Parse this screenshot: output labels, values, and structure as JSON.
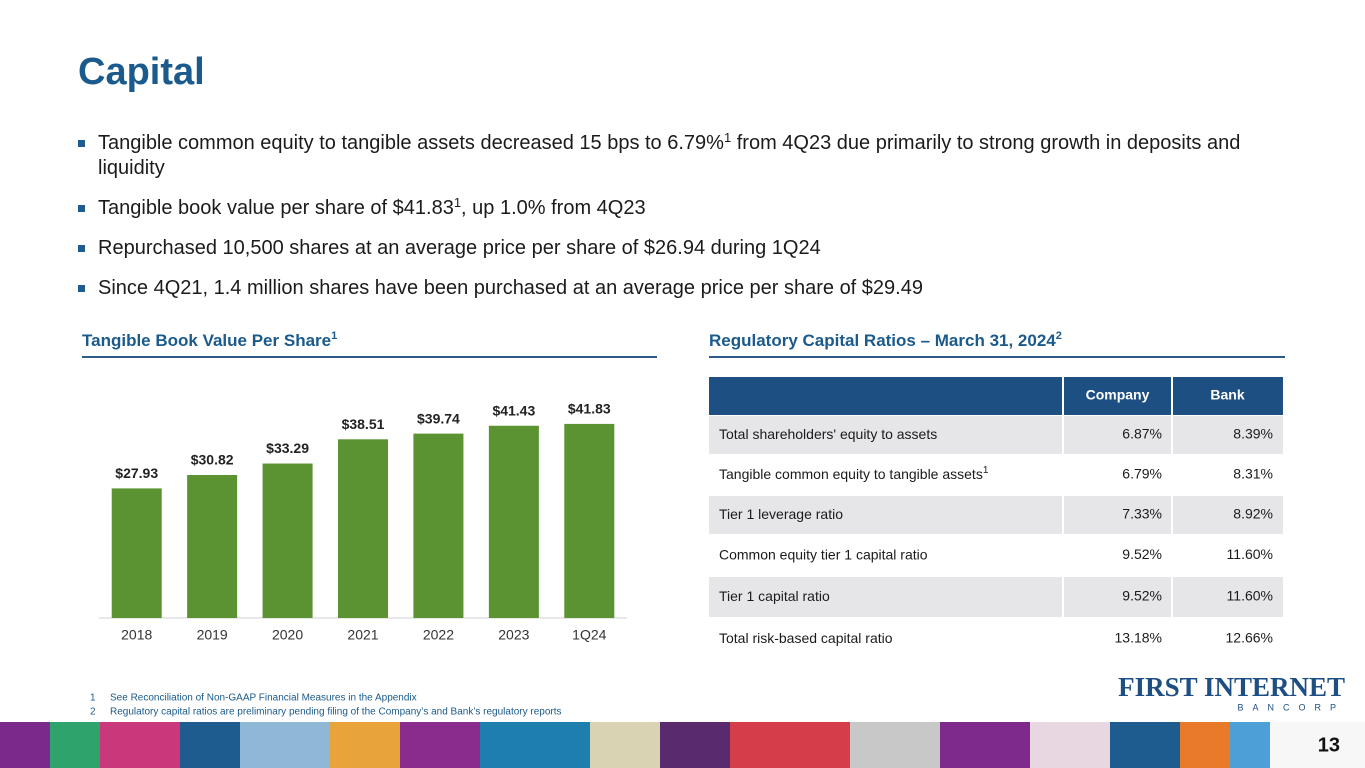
{
  "title": "Capital",
  "bullets": [
    {
      "before": "Tangible common equity to tangible assets decreased 15 bps to 6.79%",
      "note": "1",
      "after": " from 4Q23 due primarily to strong growth in deposits and liquidity"
    },
    {
      "before": "Tangible book value per share of $41.83",
      "note": "1",
      "after": ", up 1.0% from 4Q23"
    },
    {
      "before": "Repurchased 10,500 shares at an average price per share of $26.94 during 1Q24"
    },
    {
      "before": "Since 4Q21, 1.4 million shares have been purchased at an average price per share of $29.49"
    }
  ],
  "chart_data": {
    "type": "bar",
    "title": "Tangible Book Value Per Share",
    "title_note": "1",
    "categories": [
      "2018",
      "2019",
      "2020",
      "2021",
      "2022",
      "2023",
      "1Q24"
    ],
    "values": [
      27.93,
      30.82,
      33.29,
      38.51,
      39.74,
      41.43,
      41.83
    ],
    "value_labels": [
      "$27.93",
      "$30.82",
      "$33.29",
      "$38.51",
      "$39.74",
      "$41.43",
      "$41.83"
    ],
    "color": "#5b9232",
    "ylim": [
      0,
      50
    ]
  },
  "table": {
    "title": "Regulatory Capital Ratios – March 31, 2024",
    "title_note": "2",
    "columns": [
      "Company",
      "Bank"
    ],
    "rows": [
      {
        "label": "Total shareholders' equity to assets",
        "cells": [
          "6.87%",
          "8.39%"
        ]
      },
      {
        "label": "Tangible common equity to tangible assets",
        "note": "1",
        "cells": [
          "6.79%",
          "8.31%"
        ]
      },
      {
        "label": "Tier 1 leverage ratio",
        "cells": [
          "7.33%",
          "8.92%"
        ]
      },
      {
        "label": "Common equity tier 1 capital ratio",
        "cells": [
          "9.52%",
          "11.60%"
        ]
      },
      {
        "label": "Tier 1 capital ratio",
        "cells": [
          "9.52%",
          "11.60%"
        ]
      },
      {
        "label": "Total risk-based capital ratio",
        "cells": [
          "13.18%",
          "12.66%"
        ]
      }
    ]
  },
  "footnotes": [
    {
      "number": "1",
      "text": "See Reconciliation of Non-GAAP Financial Measures in the Appendix"
    },
    {
      "number": "2",
      "text": "Regulatory capital ratios are preliminary pending filing of the Company’s and Bank’s regulatory reports"
    }
  ],
  "logo": {
    "name": "FIRST INTERNET",
    "sub": "BANCORP"
  },
  "page_number": "13"
}
